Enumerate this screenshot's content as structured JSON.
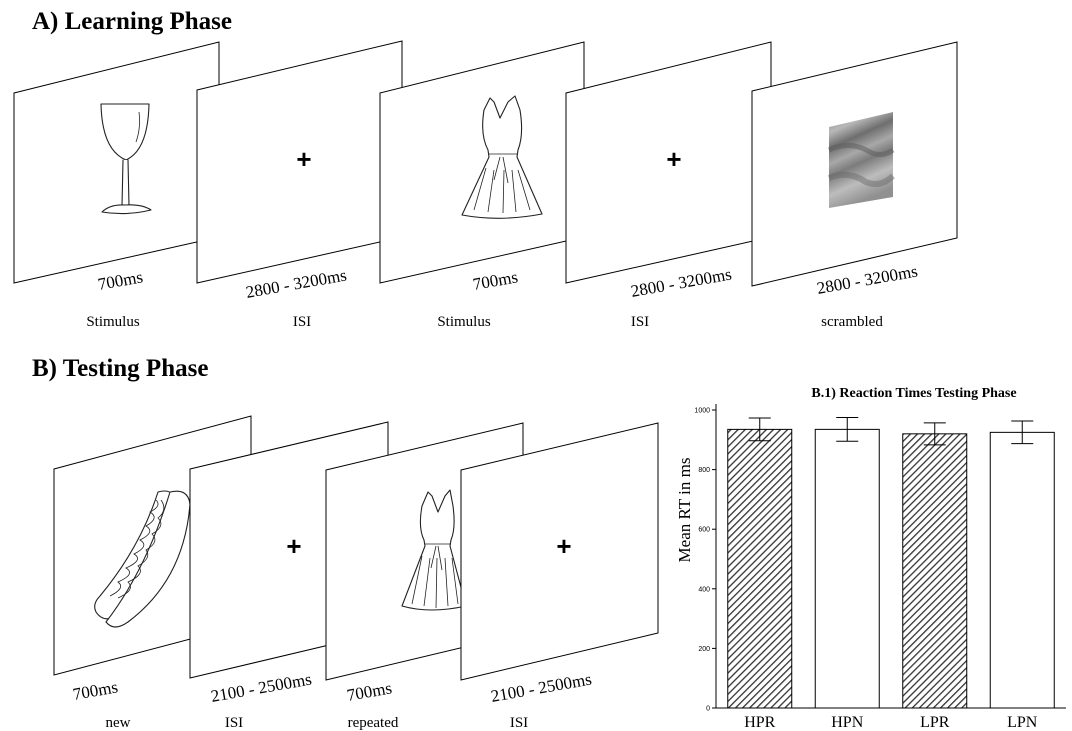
{
  "learning": {
    "title": "A) Learning Phase",
    "panels": [
      {
        "duration": "700ms",
        "caption": "Stimulus",
        "content": "wine-glass drawing"
      },
      {
        "duration": "2800 - 3200ms",
        "caption": "ISI",
        "content": "+"
      },
      {
        "duration": "700ms",
        "caption": "Stimulus",
        "content": "dress drawing"
      },
      {
        "duration": "2800 - 3200ms",
        "caption": "ISI",
        "content": "+"
      },
      {
        "duration": "2800 - 3200ms",
        "caption": "scrambled",
        "content": "scrambled image"
      }
    ]
  },
  "testing": {
    "title": "B) Testing Phase",
    "panels": [
      {
        "duration": "700ms",
        "caption": "new",
        "content": "hot-dog drawing"
      },
      {
        "duration": "2100 - 2500ms",
        "caption": "ISI",
        "content": "+"
      },
      {
        "duration": "700ms",
        "caption": "repeated",
        "content": "dress drawing"
      },
      {
        "duration": "2100 - 2500ms",
        "caption": "ISI",
        "content": "+"
      }
    ]
  },
  "chart_data": {
    "type": "bar",
    "title": "B.1) Reaction Times Testing Phase",
    "ylabel": "Mean RT in ms",
    "xlabel": "",
    "categories": [
      "HPR",
      "HPN",
      "LPR",
      "LPN"
    ],
    "values": [
      935,
      935,
      920,
      925
    ],
    "errors": [
      38,
      40,
      37,
      38
    ],
    "patterns": [
      "hatched",
      "plain",
      "hatched",
      "plain"
    ],
    "ylim": [
      0,
      1000
    ],
    "yticks": [
      "0",
      "200",
      "400",
      "600",
      "800",
      "1000"
    ],
    "grid": false
  }
}
